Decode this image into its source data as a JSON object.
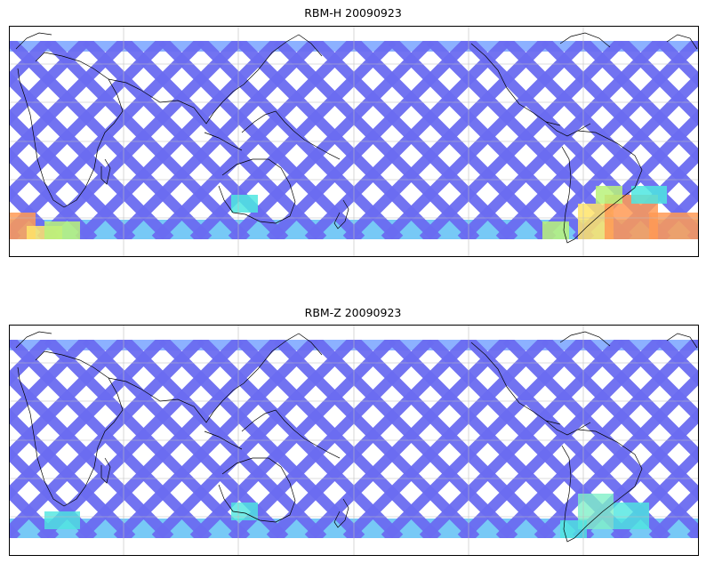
{
  "panels": [
    {
      "title": "RBM-H 20090923",
      "swath_color": "#6a6cf0",
      "band_colors": [
        "#7fa8ff",
        "#5fbff5",
        "#4ee6e0",
        "#b8f27a",
        "#ffe46a",
        "#ff9a55"
      ],
      "high_values_south": true
    },
    {
      "title": "RBM-Z 20090923",
      "swath_color": "#6a6cf0",
      "band_colors": [
        "#7fa8ff",
        "#5fbff5",
        "#4ee6e0",
        "#7ff0c8"
      ],
      "high_values_south": false
    }
  ],
  "map": {
    "projection": "equirectangular",
    "coastline_color": "#000000",
    "gridline_color": "#bdbdbd",
    "background": "#ffffff"
  }
}
